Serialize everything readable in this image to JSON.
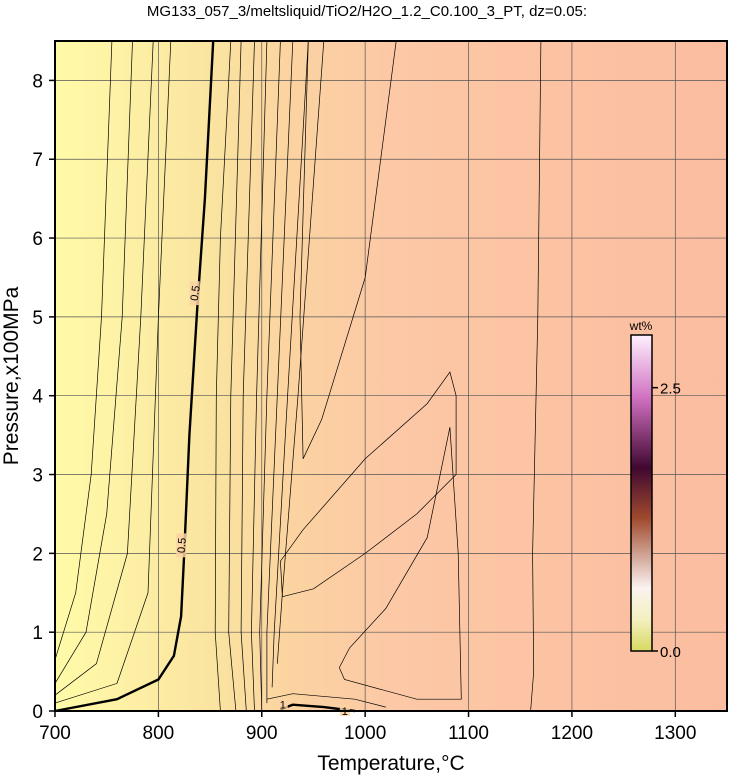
{
  "chart_data": {
    "type": "contour",
    "title": "MG133_057_3/meltsliquid/TiO2/H2O_1.2_C0.100_3_PT, dz=0.05:",
    "xlabel": "Temperature,°C",
    "ylabel": "Pressure,x100MPa",
    "xlim": [
      700,
      1350
    ],
    "ylim": [
      0,
      8.5
    ],
    "xticks": [
      700,
      800,
      900,
      1000,
      1100,
      1200,
      1300
    ],
    "yticks": [
      0,
      1,
      2,
      3,
      4,
      5,
      6,
      7,
      8
    ],
    "grid": true,
    "colorbar": {
      "label": "wt%",
      "lim": [
        0,
        3.0
      ],
      "ticks": [
        {
          "value": 0,
          "label": "0.0"
        },
        2.5
      ]
    },
    "contours": [
      {
        "level": 0.5,
        "bold": true,
        "x": [
          700,
          760,
          800,
          815,
          822,
          825,
          830,
          838,
          845,
          853
        ],
        "y": [
          0.0,
          0.15,
          0.4,
          0.7,
          1.2,
          2.0,
          3.5,
          5.2,
          6.5,
          8.5
        ]
      },
      {
        "level": 1,
        "bold": true,
        "x": [
          918,
          930,
          960,
          990
        ],
        "y": [
          0.02,
          0.08,
          0.05,
          0.0
        ]
      },
      {
        "x": [
          905,
          930,
          990,
          1020
        ],
        "y": [
          0.15,
          0.22,
          0.15,
          0.05
        ]
      },
      {
        "x": [
          700,
          720,
          735,
          745,
          755
        ],
        "y": [
          0.65,
          1.5,
          3.0,
          5.0,
          8.5
        ]
      },
      {
        "x": [
          700,
          730,
          750,
          765,
          775
        ],
        "y": [
          0.35,
          1.0,
          2.5,
          5.0,
          8.5
        ]
      },
      {
        "x": [
          700,
          740,
          770,
          783,
          795
        ],
        "y": [
          0.2,
          0.6,
          2.0,
          5.0,
          8.5
        ]
      },
      {
        "x": [
          700,
          760,
          790,
          800,
          812
        ],
        "y": [
          0.1,
          0.35,
          1.5,
          5.0,
          8.5
        ]
      },
      {
        "x": [
          860,
          855,
          856,
          860,
          870
        ],
        "y": [
          0,
          1.0,
          4,
          6,
          8.5
        ]
      },
      {
        "x": [
          875,
          868,
          870,
          880
        ],
        "y": [
          0,
          1.0,
          4,
          8.5
        ]
      },
      {
        "x": [
          885,
          880,
          882,
          893
        ],
        "y": [
          0,
          1,
          4,
          8.5
        ]
      },
      {
        "x": [
          893,
          890,
          895,
          905
        ],
        "y": [
          0,
          1,
          4,
          8.5
        ]
      },
      {
        "x": [
          900,
          898,
          905,
          918
        ],
        "y": [
          0,
          1,
          4,
          8.5
        ]
      },
      {
        "x": [
          905,
          905,
          915,
          930
        ],
        "y": [
          0.1,
          1,
          4,
          8.5
        ]
      },
      {
        "x": [
          910,
          912,
          925,
          945
        ],
        "y": [
          0.3,
          1,
          4,
          8.5
        ]
      },
      {
        "x": [
          915,
          920,
          935,
          960
        ],
        "y": [
          0.6,
          1.5,
          4,
          8.5
        ]
      },
      {
        "x": [
          945,
          937,
          940,
          958,
          1000,
          1030
        ],
        "y": [
          8.5,
          5,
          3.2,
          3.7,
          5.5,
          8.5
        ]
      },
      {
        "x": [
          920,
          918,
          940,
          1000,
          1060,
          1082,
          1088,
          1088,
          1050,
          1000,
          950,
          920
        ],
        "y": [
          1.45,
          1.9,
          2.3,
          3.2,
          3.9,
          4.3,
          4.0,
          3.0,
          2.5,
          2.0,
          1.55,
          1.45
        ]
      },
      {
        "x": [
          975,
          985,
          1020,
          1060,
          1082,
          1090,
          1093,
          1050,
          980,
          975
        ],
        "y": [
          0.55,
          0.8,
          1.3,
          2.2,
          3.6,
          2.0,
          0.15,
          0.15,
          0.4,
          0.55
        ]
      },
      {
        "x": [
          1160,
          1163,
          1162,
          1167,
          1170
        ],
        "y": [
          0,
          0.5,
          2,
          5,
          8.5
        ]
      }
    ]
  }
}
